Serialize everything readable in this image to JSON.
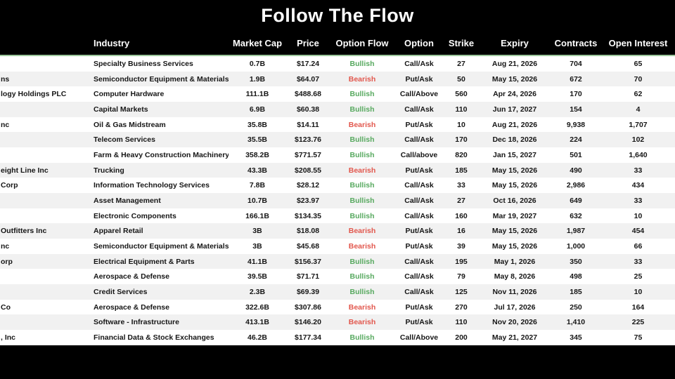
{
  "title": "Follow The Flow",
  "colors": {
    "background": "#000000",
    "title_text": "#ffffff",
    "header_bg": "#000000",
    "header_text": "#ffffff",
    "header_underline": "#9cc79c",
    "row_bg": "#ffffff",
    "row_alt_bg": "#f1f1f1",
    "bullish": "#57a95f",
    "bearish": "#e2574d"
  },
  "chart_data": {
    "type": "table",
    "title": "Follow The Flow",
    "columns": [
      "",
      "Industry",
      "Market Cap",
      "Price",
      "Option Flow",
      "Option",
      "Strike",
      "Expiry",
      "Contracts",
      "Open Interest"
    ],
    "rows": [
      {
        "company": "",
        "industry": "Specialty Business Services",
        "market_cap": "0.7B",
        "price": "$17.24",
        "option_flow": "Bullish",
        "option": "Call/Ask",
        "strike": "27",
        "expiry": "Aug 21, 2026",
        "contracts": "704",
        "open_interest": "65"
      },
      {
        "company": "ns",
        "industry": "Semiconductor Equipment & Materials",
        "market_cap": "1.9B",
        "price": "$64.07",
        "option_flow": "Bearish",
        "option": "Put/Ask",
        "strike": "50",
        "expiry": "May 15, 2026",
        "contracts": "672",
        "open_interest": "70"
      },
      {
        "company": "logy Holdings PLC",
        "industry": "Computer Hardware",
        "market_cap": "111.1B",
        "price": "$488.68",
        "option_flow": "Bullish",
        "option": "Call/Above",
        "strike": "560",
        "expiry": "Apr 24, 2026",
        "contracts": "170",
        "open_interest": "62"
      },
      {
        "company": "",
        "industry": "Capital Markets",
        "market_cap": "6.9B",
        "price": "$60.38",
        "option_flow": "Bullish",
        "option": "Call/Ask",
        "strike": "110",
        "expiry": "Jun 17, 2027",
        "contracts": "154",
        "open_interest": "4"
      },
      {
        "company": "nc",
        "industry": "Oil & Gas Midstream",
        "market_cap": "35.8B",
        "price": "$14.11",
        "option_flow": "Bearish",
        "option": "Put/Ask",
        "strike": "10",
        "expiry": "Aug 21, 2026",
        "contracts": "9,938",
        "open_interest": "1,707"
      },
      {
        "company": "",
        "industry": "Telecom Services",
        "market_cap": "35.5B",
        "price": "$123.76",
        "option_flow": "Bullish",
        "option": "Call/Ask",
        "strike": "170",
        "expiry": "Dec 18, 2026",
        "contracts": "224",
        "open_interest": "102"
      },
      {
        "company": "",
        "industry": "Farm & Heavy Construction Machinery",
        "market_cap": "358.2B",
        "price": "$771.57",
        "option_flow": "Bullish",
        "option": "Call/above",
        "strike": "820",
        "expiry": "Jan 15, 2027",
        "contracts": "501",
        "open_interest": "1,640"
      },
      {
        "company": "eight Line Inc",
        "industry": "Trucking",
        "market_cap": "43.3B",
        "price": "$208.55",
        "option_flow": "Bearish",
        "option": "Put/Ask",
        "strike": "185",
        "expiry": "May 15, 2026",
        "contracts": "490",
        "open_interest": "33"
      },
      {
        "company": "Corp",
        "industry": "Information Technology Services",
        "market_cap": "7.8B",
        "price": "$28.12",
        "option_flow": "Bullish",
        "option": "Call/Ask",
        "strike": "33",
        "expiry": "May 15, 2026",
        "contracts": "2,986",
        "open_interest": "434"
      },
      {
        "company": "",
        "industry": "Asset Management",
        "market_cap": "10.7B",
        "price": "$23.97",
        "option_flow": "Bullish",
        "option": "Call/Ask",
        "strike": "27",
        "expiry": "Oct 16, 2026",
        "contracts": "649",
        "open_interest": "33"
      },
      {
        "company": "",
        "industry": "Electronic Components",
        "market_cap": "166.1B",
        "price": "$134.35",
        "option_flow": "Bullish",
        "option": "Call/Ask",
        "strike": "160",
        "expiry": "Mar 19, 2027",
        "contracts": "632",
        "open_interest": "10"
      },
      {
        "company": "Outfitters Inc",
        "industry": "Apparel Retail",
        "market_cap": "3B",
        "price": "$18.08",
        "option_flow": "Bearish",
        "option": "Put/Ask",
        "strike": "16",
        "expiry": "May 15, 2026",
        "contracts": "1,987",
        "open_interest": "454"
      },
      {
        "company": "nc",
        "industry": "Semiconductor Equipment & Materials",
        "market_cap": "3B",
        "price": "$45.68",
        "option_flow": "Bearish",
        "option": "Put/Ask",
        "strike": "39",
        "expiry": "May 15, 2026",
        "contracts": "1,000",
        "open_interest": "66"
      },
      {
        "company": "orp",
        "industry": "Electrical Equipment & Parts",
        "market_cap": "41.1B",
        "price": "$156.37",
        "option_flow": "Bullish",
        "option": "Call/Ask",
        "strike": "195",
        "expiry": "May 1, 2026",
        "contracts": "350",
        "open_interest": "33"
      },
      {
        "company": "",
        "industry": "Aerospace & Defense",
        "market_cap": "39.5B",
        "price": "$71.71",
        "option_flow": "Bullish",
        "option": "Call/Ask",
        "strike": "79",
        "expiry": "May 8, 2026",
        "contracts": "498",
        "open_interest": "25"
      },
      {
        "company": "",
        "industry": "Credit Services",
        "market_cap": "2.3B",
        "price": "$69.39",
        "option_flow": "Bullish",
        "option": "Call/Ask",
        "strike": "125",
        "expiry": "Nov 11, 2026",
        "contracts": "185",
        "open_interest": "10"
      },
      {
        "company": "Co",
        "industry": "Aerospace & Defense",
        "market_cap": "322.6B",
        "price": "$307.86",
        "option_flow": "Bearish",
        "option": "Put/Ask",
        "strike": "270",
        "expiry": "Jul 17, 2026",
        "contracts": "250",
        "open_interest": "164"
      },
      {
        "company": "",
        "industry": "Software - Infrastructure",
        "market_cap": "413.1B",
        "price": "$146.20",
        "option_flow": "Bearish",
        "option": "Put/Ask",
        "strike": "110",
        "expiry": "Nov 20, 2026",
        "contracts": "1,410",
        "open_interest": "225"
      },
      {
        "company": ", Inc",
        "industry": "Financial Data & Stock Exchanges",
        "market_cap": "46.2B",
        "price": "$177.34",
        "option_flow": "Bullish",
        "option": "Call/Above",
        "strike": "200",
        "expiry": "May 21, 2027",
        "contracts": "345",
        "open_interest": "75"
      }
    ]
  }
}
